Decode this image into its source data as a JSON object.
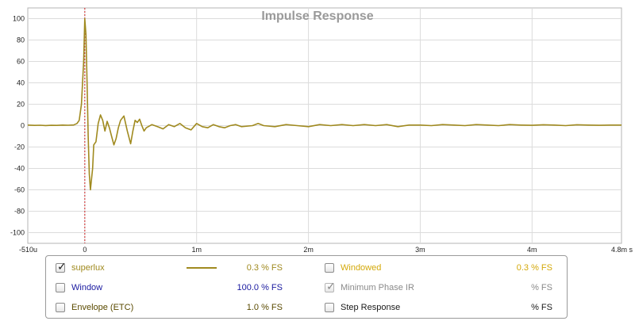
{
  "chart_data": {
    "type": "line",
    "title": "Impulse Response",
    "xlim": [
      -0.51,
      4.8
    ],
    "ylim": [
      -110,
      110
    ],
    "x_ticks": [
      {
        "value": -0.51,
        "label": "-510u"
      },
      {
        "value": 0,
        "label": "0"
      },
      {
        "value": 1,
        "label": "1m"
      },
      {
        "value": 2,
        "label": "2m"
      },
      {
        "value": 3,
        "label": "3m"
      },
      {
        "value": 4,
        "label": "4m"
      },
      {
        "value": 4.8,
        "label": "4.8m s"
      }
    ],
    "y_ticks": [
      100,
      80,
      60,
      40,
      20,
      0,
      -20,
      -40,
      -60,
      -80,
      -100
    ],
    "grid": true,
    "marker_x": 0,
    "series": [
      {
        "name": "superlux",
        "color": "#a08a1f",
        "points": [
          [
            -0.51,
            0.5
          ],
          [
            -0.45,
            0.2
          ],
          [
            -0.4,
            0.4
          ],
          [
            -0.35,
            0.1
          ],
          [
            -0.3,
            0.3
          ],
          [
            -0.25,
            0.2
          ],
          [
            -0.2,
            0.5
          ],
          [
            -0.15,
            0.4
          ],
          [
            -0.1,
            0.6
          ],
          [
            -0.07,
            2
          ],
          [
            -0.05,
            5
          ],
          [
            -0.03,
            20
          ],
          [
            -0.01,
            60
          ],
          [
            0,
            100
          ],
          [
            0.01,
            85
          ],
          [
            0.02,
            40
          ],
          [
            0.03,
            -10
          ],
          [
            0.04,
            -45
          ],
          [
            0.05,
            -60
          ],
          [
            0.07,
            -40
          ],
          [
            0.08,
            -18
          ],
          [
            0.1,
            -15
          ],
          [
            0.12,
            2
          ],
          [
            0.14,
            10
          ],
          [
            0.16,
            5
          ],
          [
            0.18,
            -5
          ],
          [
            0.2,
            4
          ],
          [
            0.22,
            -2
          ],
          [
            0.24,
            -10
          ],
          [
            0.26,
            -18
          ],
          [
            0.28,
            -12
          ],
          [
            0.3,
            -2
          ],
          [
            0.32,
            5
          ],
          [
            0.35,
            9
          ],
          [
            0.38,
            -5
          ],
          [
            0.41,
            -17
          ],
          [
            0.43,
            -5
          ],
          [
            0.45,
            5
          ],
          [
            0.47,
            3
          ],
          [
            0.49,
            6
          ],
          [
            0.51,
            0
          ],
          [
            0.53,
            -5
          ],
          [
            0.55,
            -2
          ],
          [
            0.6,
            1
          ],
          [
            0.65,
            -1
          ],
          [
            0.7,
            -3
          ],
          [
            0.75,
            1
          ],
          [
            0.8,
            -1
          ],
          [
            0.85,
            2
          ],
          [
            0.9,
            -2
          ],
          [
            0.95,
            -4
          ],
          [
            1.0,
            2
          ],
          [
            1.05,
            -1
          ],
          [
            1.1,
            -2
          ],
          [
            1.15,
            1
          ],
          [
            1.2,
            -1
          ],
          [
            1.25,
            -2
          ],
          [
            1.3,
            0
          ],
          [
            1.35,
            1
          ],
          [
            1.4,
            -1
          ],
          [
            1.5,
            0
          ],
          [
            1.55,
            2
          ],
          [
            1.6,
            0
          ],
          [
            1.7,
            -1
          ],
          [
            1.8,
            1
          ],
          [
            1.9,
            0
          ],
          [
            2.0,
            -1
          ],
          [
            2.1,
            1
          ],
          [
            2.2,
            0
          ],
          [
            2.3,
            1
          ],
          [
            2.4,
            0
          ],
          [
            2.5,
            1
          ],
          [
            2.6,
            0
          ],
          [
            2.7,
            1
          ],
          [
            2.8,
            -1
          ],
          [
            2.9,
            0.5
          ],
          [
            3.0,
            0.5
          ],
          [
            3.1,
            0
          ],
          [
            3.2,
            1
          ],
          [
            3.3,
            0.5
          ],
          [
            3.4,
            0
          ],
          [
            3.5,
            1
          ],
          [
            3.6,
            0.5
          ],
          [
            3.7,
            0
          ],
          [
            3.8,
            1
          ],
          [
            3.9,
            0.5
          ],
          [
            4.0,
            0.3
          ],
          [
            4.1,
            0.8
          ],
          [
            4.2,
            0.5
          ],
          [
            4.3,
            0
          ],
          [
            4.4,
            0.8
          ],
          [
            4.5,
            0.5
          ],
          [
            4.6,
            0.3
          ],
          [
            4.7,
            0.5
          ],
          [
            4.8,
            0.5
          ]
        ]
      }
    ]
  },
  "legend": {
    "rows": [
      {
        "left": {
          "label": "superlux",
          "checked": true,
          "color": "#a08a1f",
          "value": "0.3 % FS",
          "value_color": "#a08a1f",
          "swatch": true
        },
        "right": {
          "label": "Windowed",
          "checked": false,
          "color": "#d4a90a",
          "value": "0.3 % FS",
          "value_color": "#d4a90a"
        }
      },
      {
        "left": {
          "label": "Window",
          "checked": false,
          "color": "#1a1aa0",
          "value": "100.0 % FS",
          "value_color": "#1a1aa0"
        },
        "right": {
          "label": "Minimum Phase IR",
          "checked": true,
          "disabled": true,
          "color": "#8a8a8a",
          "value": "% FS",
          "value_color": "#8a8a8a"
        }
      },
      {
        "left": {
          "label": "Envelope (ETC)",
          "checked": false,
          "color": "#5a4a00",
          "value": "1.0 % FS",
          "value_color": "#5a4a00"
        },
        "right": {
          "label": "Step Response",
          "checked": false,
          "color": "#1a1a1a",
          "value": "% FS",
          "value_color": "#1a1a1a"
        }
      }
    ]
  }
}
